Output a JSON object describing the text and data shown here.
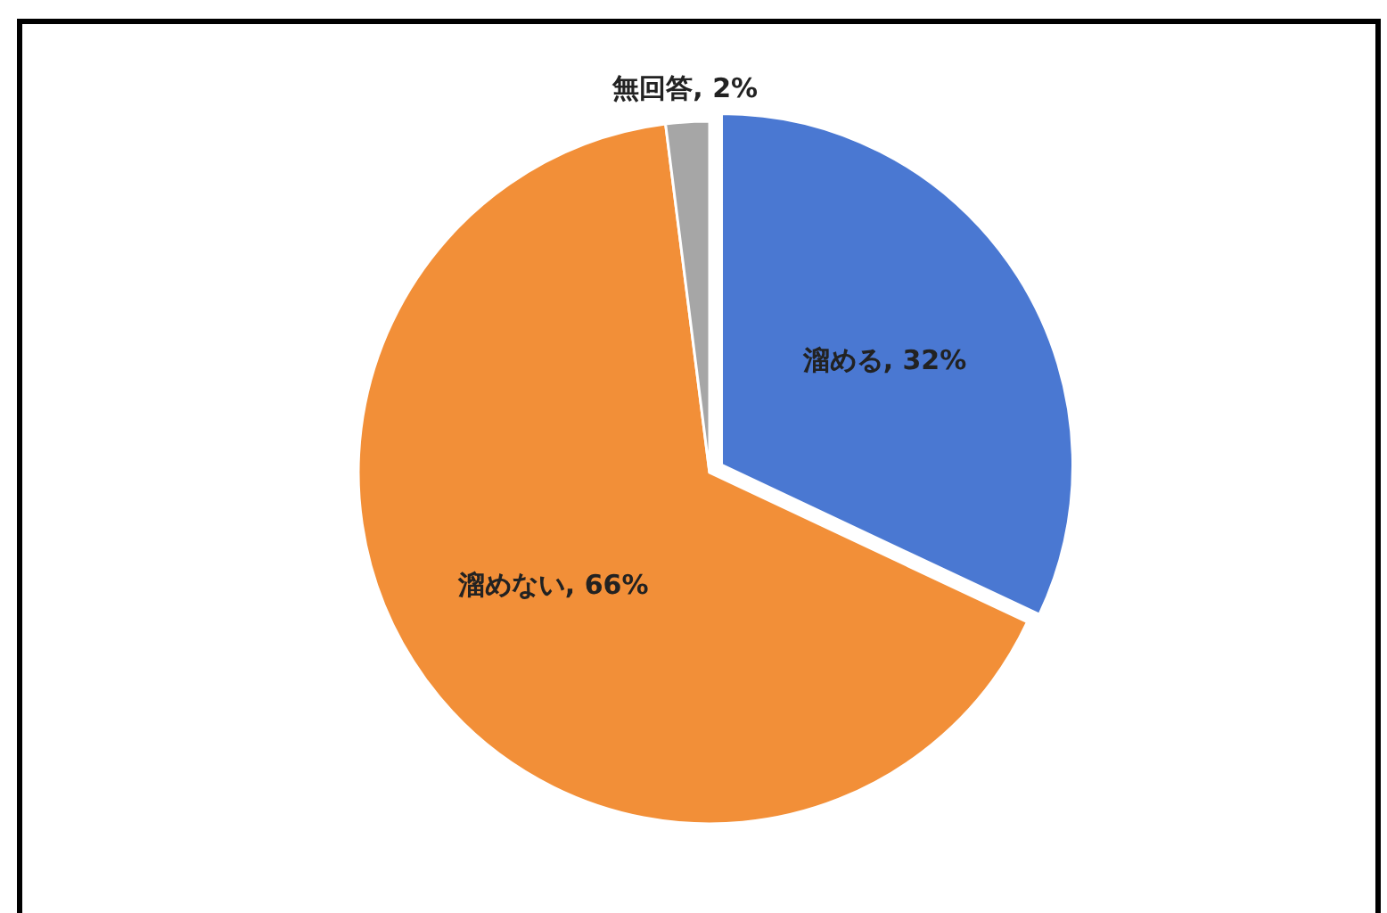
{
  "chart_data": {
    "type": "pie",
    "categories": [
      "溜める",
      "溜めない",
      "無回答"
    ],
    "values": [
      32,
      66,
      2
    ],
    "value_labels": [
      "32%",
      "66%",
      "2%"
    ],
    "colors": [
      "#4a78d2",
      "#f28f38",
      "#a6a6a6"
    ],
    "legend": false
  }
}
